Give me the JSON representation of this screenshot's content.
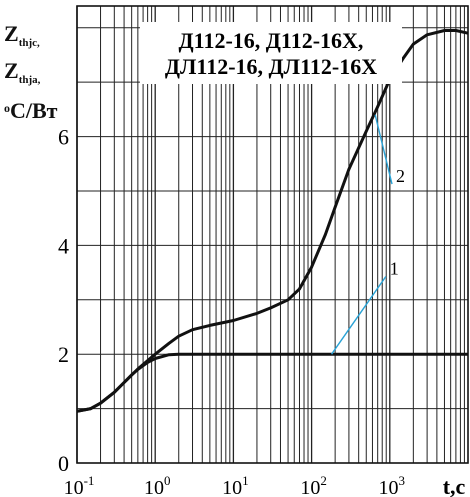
{
  "chart_data": {
    "type": "line",
    "title_lines": [
      "Д112-16, Д112-16Х,",
      "ДЛ112-16, ДЛ112-16Х"
    ],
    "ylabel_lines": [
      "Z",
      "thjc,",
      "Z",
      "thja,",
      "o",
      "C/Вт"
    ],
    "xlabel": "t,c",
    "x_scale": "log",
    "xlim": [
      0.1,
      10000
    ],
    "ylim": [
      0,
      8.4
    ],
    "yticks": [
      0,
      2,
      4,
      6
    ],
    "ytick_labels": [
      "0",
      "2",
      "4",
      "6"
    ],
    "xtick_labels": [
      {
        "base": "10",
        "exp": "-1",
        "value": 0.1
      },
      {
        "base": "10",
        "exp": "0",
        "value": 1
      },
      {
        "base": "10",
        "exp": "1",
        "value": 10
      },
      {
        "base": "10",
        "exp": "2",
        "value": 100
      },
      {
        "base": "10",
        "exp": "3",
        "value": 1000
      }
    ],
    "grid": true,
    "series": [
      {
        "label": "1",
        "color": "#111111",
        "x": [
          0.1,
          0.15,
          0.2,
          0.3,
          0.4,
          0.5,
          0.6,
          0.8,
          1.0,
          1.5,
          2,
          5,
          10,
          100,
          1000,
          10000
        ],
        "y": [
          0.95,
          1.0,
          1.1,
          1.3,
          1.48,
          1.62,
          1.72,
          1.85,
          1.92,
          1.99,
          2.0,
          2.0,
          2.0,
          2.0,
          2.0,
          2.0
        ]
      },
      {
        "label": "2",
        "color": "#111111",
        "x": [
          0.1,
          0.15,
          0.2,
          0.3,
          0.4,
          0.5,
          0.6,
          0.8,
          1.0,
          1.5,
          2,
          3,
          5,
          10,
          20,
          30,
          50,
          70,
          100,
          150,
          200,
          300,
          500,
          700,
          1000,
          1500,
          2000,
          3000,
          5000,
          7000,
          10000
        ],
        "y": [
          0.95,
          1.0,
          1.1,
          1.3,
          1.48,
          1.62,
          1.73,
          1.88,
          2.0,
          2.2,
          2.33,
          2.45,
          2.53,
          2.62,
          2.75,
          2.85,
          3.0,
          3.2,
          3.6,
          4.2,
          4.7,
          5.4,
          6.1,
          6.55,
          7.05,
          7.45,
          7.7,
          7.87,
          7.95,
          7.95,
          7.9
        ]
      }
    ],
    "annotations": [
      {
        "text": "1",
        "series": "1",
        "leader_color": "#2aa3d6",
        "x": 180,
        "y": 2.0,
        "text_x": 1000,
        "text_y": 3.5
      },
      {
        "text": "2",
        "series": "2",
        "leader_color": "#2aa3d6",
        "x": 650,
        "y": 6.4,
        "text_x": 1200,
        "text_y": 5.2
      }
    ]
  }
}
